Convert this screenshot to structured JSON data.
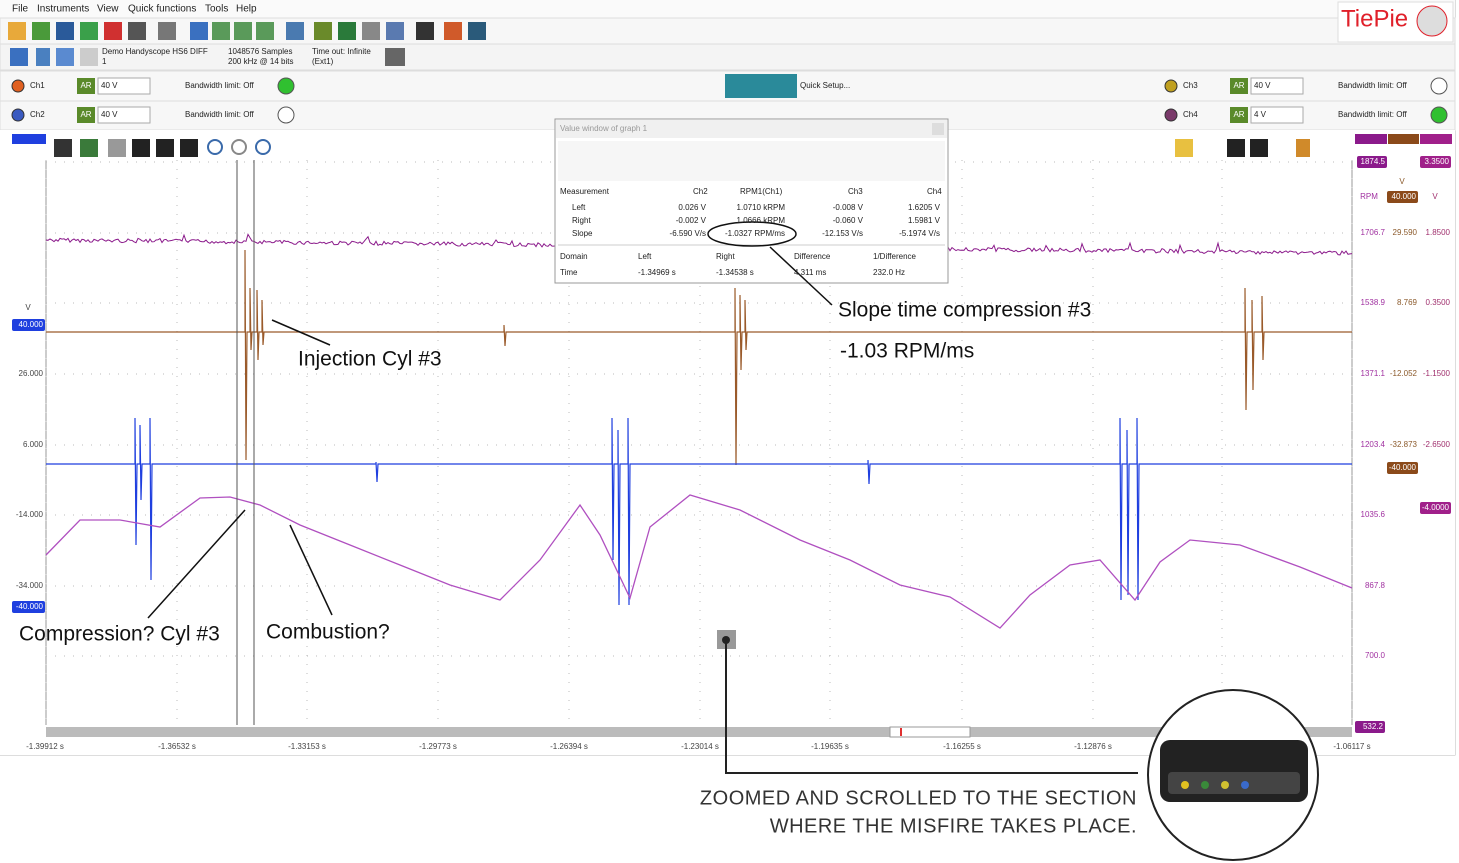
{
  "menu": [
    "File",
    "Instruments",
    "View",
    "Quick functions",
    "Tools",
    "Help"
  ],
  "logo": "TiePie",
  "instrument": {
    "name": "Demo Handyscope HS6 DIFF",
    "index": "1",
    "samples": "1048576 Samples",
    "resolution": "200 kHz @ 14 bits",
    "timeout": "Time out: Infinite",
    "trigger_source": "(Ext1)"
  },
  "channels": [
    {
      "name": "Ch1",
      "mode": "AR",
      "range": "40 V",
      "bandwidth": "Bandwidth limit: Off"
    },
    {
      "name": "Ch2",
      "mode": "AR",
      "range": "40 V",
      "bandwidth": "Bandwidth limit: Off"
    },
    {
      "name": "Ch3",
      "mode": "AR",
      "range": "40 V",
      "bandwidth": "Bandwidth limit: Off"
    },
    {
      "name": "Ch4",
      "mode": "AR",
      "range": "4 V",
      "bandwidth": "Bandwidth limit: Off"
    }
  ],
  "quick_setup": "Quick Setup...",
  "value_window": {
    "title": "Value window of graph 1",
    "headers": [
      "Measurement",
      "Ch2",
      "RPM1(Ch1)",
      "Ch3",
      "Ch4"
    ],
    "rows": [
      [
        "Left",
        "0.026 V",
        "1.0710 kRPM",
        "-0.008 V",
        "1.6205 V"
      ],
      [
        "Right",
        "-0.002 V",
        "1.0666 kRPM",
        "-0.060 V",
        "1.5981 V"
      ],
      [
        "Slope",
        "-6.590 V/s",
        "-1.0327 RPM/ms",
        "-12.153 V/s",
        "-5.1974 V/s"
      ]
    ],
    "domain_headers": [
      "Domain",
      "Left",
      "Right",
      "Difference",
      "1/Difference"
    ],
    "domain_rows": [
      [
        "Time",
        "-1.34969 s",
        "-1.34538 s",
        "4.311 ms",
        "232.0 Hz"
      ]
    ]
  },
  "graph": {
    "left_axis": {
      "unit": "V",
      "ticks": [
        "40.000",
        "26.000",
        "6.000",
        "-14.000",
        "-34.000",
        "-40.000"
      ]
    },
    "right_axis": {
      "top": [
        "1874.5",
        "3.3500"
      ],
      "units": [
        "RPM",
        "V",
        "V"
      ],
      "range_top": "40.000",
      "rows": [
        [
          "1706.7",
          "29.590",
          "1.8500"
        ],
        [
          "1538.9",
          "8.769",
          "0.3500"
        ],
        [
          "1371.1",
          "-12.052",
          "-1.1500"
        ],
        [
          "1203.4",
          "-32.873",
          "-2.6500"
        ],
        [
          "1035.6"
        ],
        [
          "867.8"
        ],
        [
          "700.0"
        ]
      ],
      "range_bottom": "-40.000",
      "ch4_bottom": "-4.0000",
      "rpm_bottom": "532.2"
    },
    "x_ticks": [
      "-1.39912 s",
      "-1.36532 s",
      "-1.33153 s",
      "-1.29773 s",
      "-1.26394 s",
      "-1.23014 s",
      "-1.19635 s",
      "-1.16255 s",
      "-1.12876 s",
      "-1.06117 s"
    ]
  },
  "annotations": {
    "injection": "Injection Cyl #3",
    "slope_title": "Slope time compression #3",
    "slope_value": "-1.03 RPM/ms",
    "compression": "Compression? Cyl #3",
    "combustion": "Combustion?"
  },
  "caption": [
    "ZOOMED AND SCROLLED TO THE SECTION",
    "WHERE THE MISFIRE TAKES PLACE."
  ]
}
